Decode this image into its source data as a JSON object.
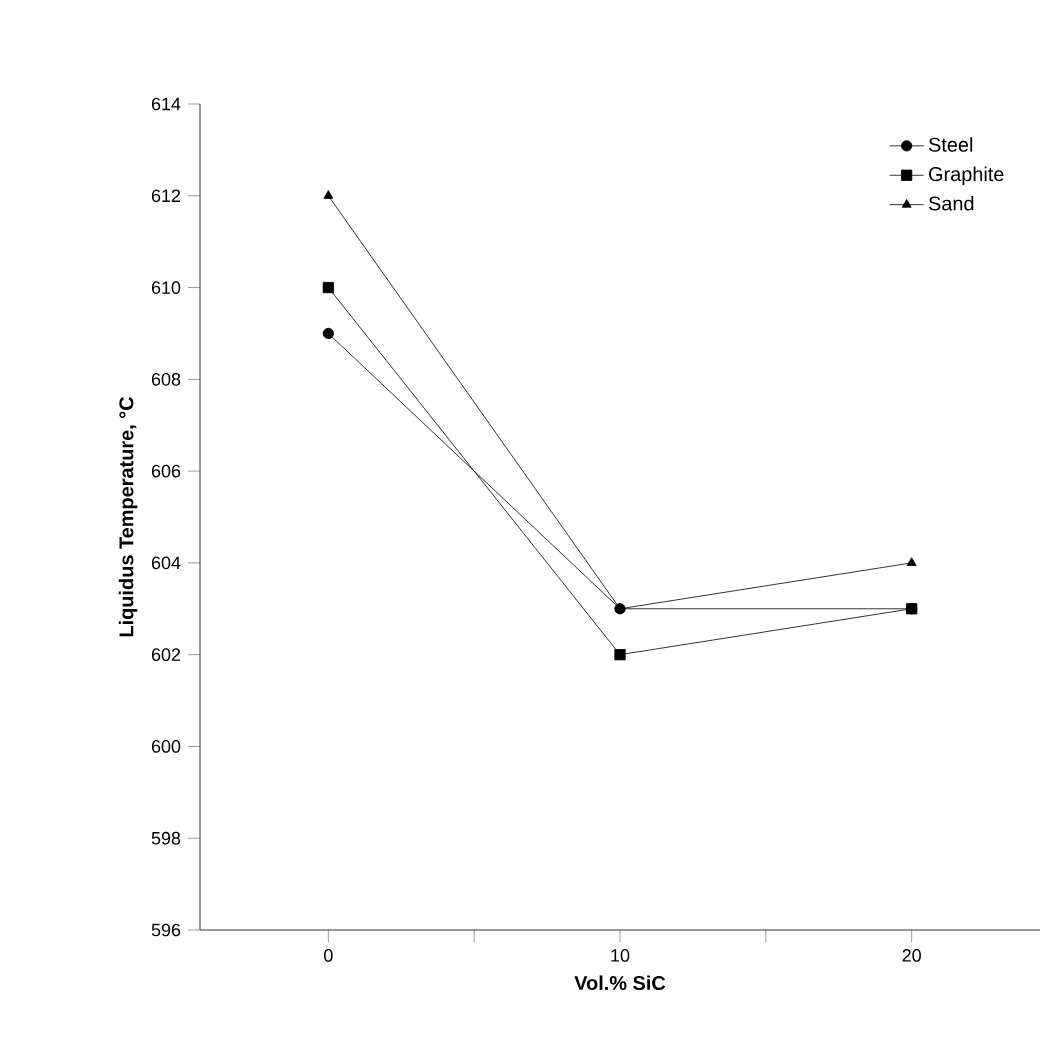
{
  "chart_data": {
    "type": "line",
    "xlabel": "Vol.% SiC",
    "ylabel": "Liquidus Temperature, °C",
    "x": [
      0,
      10,
      20
    ],
    "series": [
      {
        "name": "Steel",
        "color": "#000000",
        "marker": "circle",
        "values": [
          609,
          603,
          603
        ]
      },
      {
        "name": "Graphite",
        "color": "#000000",
        "marker": "square",
        "values": [
          610,
          602,
          603
        ]
      },
      {
        "name": "Sand",
        "color": "#000000",
        "marker": "triangle",
        "values": [
          612,
          603,
          604
        ]
      }
    ],
    "xlim": [
      -4.4,
      24.4
    ],
    "xticks": [
      0,
      {
        "value": 5,
        "label": null
      },
      10,
      {
        "value": 15,
        "label": null
      },
      20
    ],
    "ylim": [
      596,
      614
    ],
    "yticks": [
      596,
      598,
      600,
      602,
      604,
      606,
      608,
      610,
      612,
      614
    ],
    "grid": false,
    "legend": "top right",
    "line_style": "solid"
  }
}
